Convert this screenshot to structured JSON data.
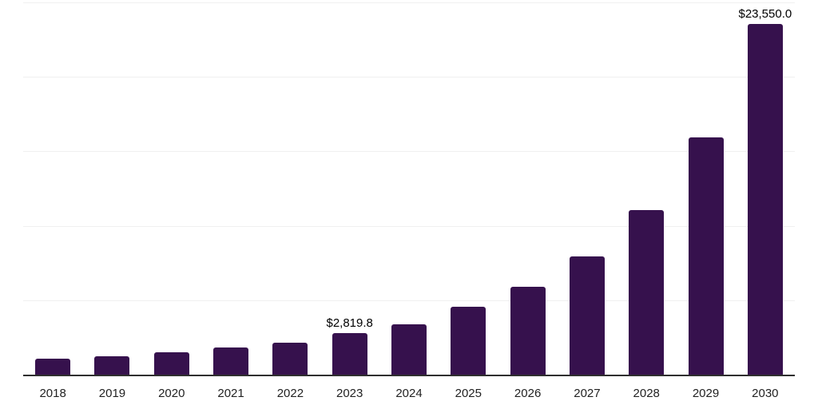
{
  "chart_data": {
    "type": "bar",
    "title": "",
    "xlabel": "",
    "ylabel": "",
    "categories": [
      "2018",
      "2019",
      "2020",
      "2021",
      "2022",
      "2023",
      "2024",
      "2025",
      "2026",
      "2027",
      "2028",
      "2029",
      "2030"
    ],
    "values": [
      1110,
      1300,
      1570,
      1870,
      2200,
      2819.8,
      3420,
      4580,
      5920,
      7990,
      11090,
      15960,
      23550
    ],
    "data_labels": [
      "",
      "",
      "",
      "",
      "",
      "$2,819.8",
      "",
      "",
      "",
      "",
      "",
      "",
      "$23,550.0"
    ],
    "ylim": [
      0,
      25000
    ],
    "gridline_values": [
      5000,
      10000,
      15000,
      20000,
      25000
    ],
    "grid_on": true,
    "legend_position": "none",
    "colors": {
      "bar": "#36114d",
      "axis_line": "#2f2f2f",
      "gridline": "#f0f0f0",
      "data_label": "#000000",
      "tick_label": "#222222",
      "background": "#ffffff"
    }
  }
}
